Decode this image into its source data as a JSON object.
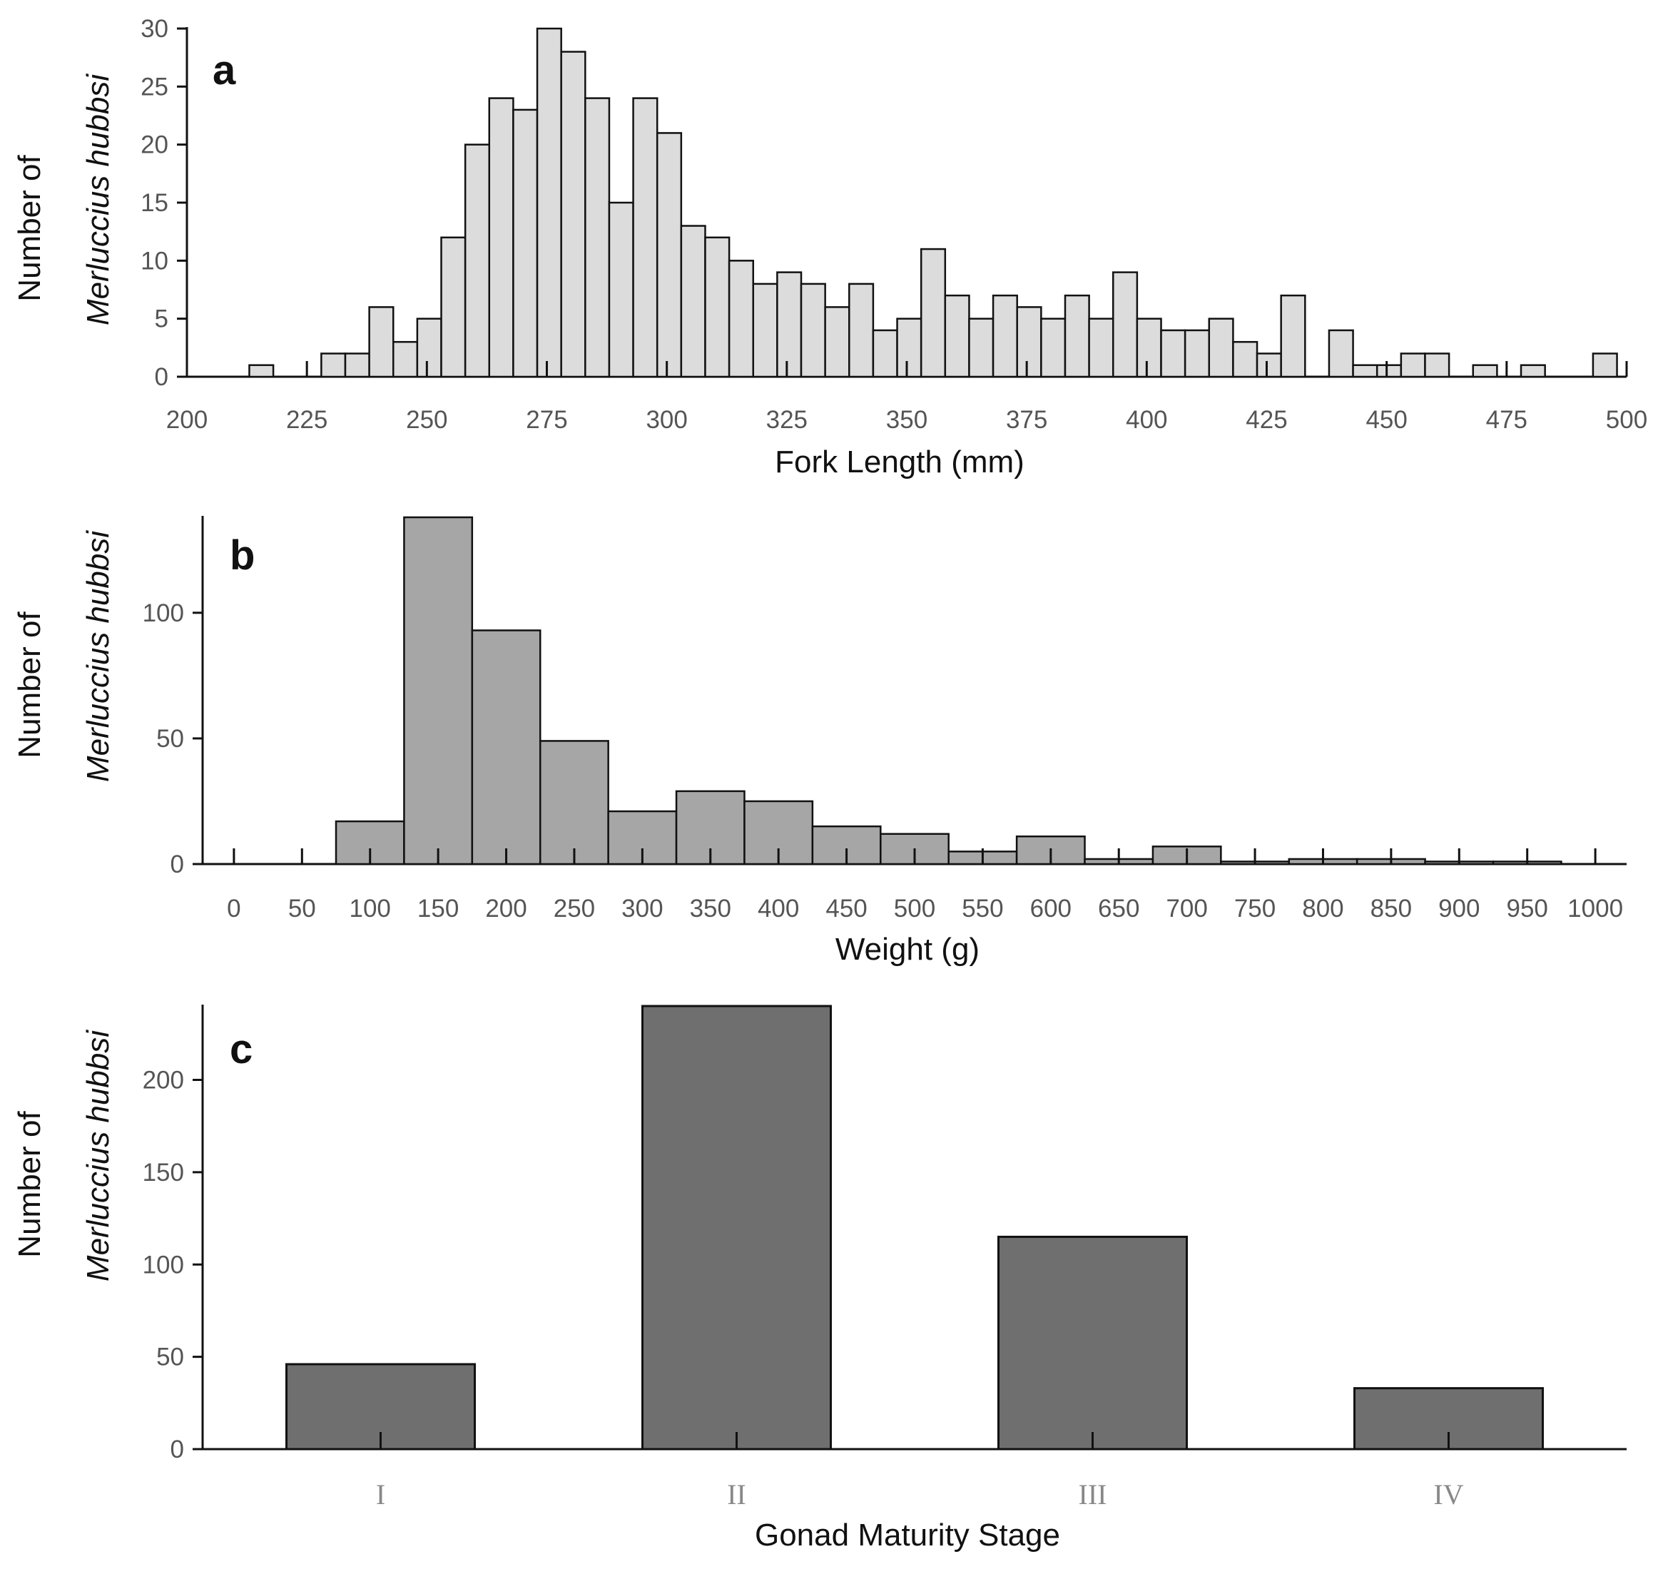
{
  "colors": {
    "panel_a_fill": "#dcdcdc",
    "panel_b_fill": "#a6a6a6",
    "panel_c_fill": "#6f6f6f",
    "stroke": "#111111",
    "tick_text": "#555555"
  },
  "chart_data": [
    {
      "type": "bar",
      "panel": "a",
      "title": "",
      "xlabel": "Fork Length (mm)",
      "ylabel_line1": "Number of",
      "ylabel_line2": "Merluccius hubbsi",
      "bin_width": 5,
      "xlim": [
        200,
        500
      ],
      "ylim": [
        0,
        30
      ],
      "xticks": [
        200,
        225,
        250,
        275,
        300,
        325,
        350,
        375,
        400,
        425,
        450,
        475,
        500
      ],
      "xtick_labels": [
        "200",
        "225",
        "250",
        "275",
        "300",
        "325",
        "350",
        "375",
        "400",
        "425",
        "450",
        "475",
        "500"
      ],
      "yticks": [
        0,
        5,
        10,
        15,
        20,
        25,
        30
      ],
      "ytick_labels": [
        "0",
        "5",
        "10",
        "15",
        "20",
        "25",
        "30"
      ],
      "bins": [
        {
          "start": 213,
          "value": 1
        },
        {
          "start": 228,
          "value": 2
        },
        {
          "start": 233,
          "value": 2
        },
        {
          "start": 238,
          "value": 6
        },
        {
          "start": 243,
          "value": 3
        },
        {
          "start": 248,
          "value": 5
        },
        {
          "start": 253,
          "value": 12
        },
        {
          "start": 258,
          "value": 20
        },
        {
          "start": 263,
          "value": 24
        },
        {
          "start": 268,
          "value": 23
        },
        {
          "start": 273,
          "value": 30
        },
        {
          "start": 278,
          "value": 28
        },
        {
          "start": 283,
          "value": 24
        },
        {
          "start": 288,
          "value": 15
        },
        {
          "start": 293,
          "value": 24
        },
        {
          "start": 298,
          "value": 21
        },
        {
          "start": 303,
          "value": 13
        },
        {
          "start": 308,
          "value": 12
        },
        {
          "start": 313,
          "value": 10
        },
        {
          "start": 318,
          "value": 8
        },
        {
          "start": 323,
          "value": 9
        },
        {
          "start": 328,
          "value": 8
        },
        {
          "start": 333,
          "value": 6
        },
        {
          "start": 338,
          "value": 8
        },
        {
          "start": 343,
          "value": 4
        },
        {
          "start": 348,
          "value": 5
        },
        {
          "start": 353,
          "value": 11
        },
        {
          "start": 358,
          "value": 7
        },
        {
          "start": 363,
          "value": 5
        },
        {
          "start": 368,
          "value": 7
        },
        {
          "start": 373,
          "value": 6
        },
        {
          "start": 378,
          "value": 5
        },
        {
          "start": 383,
          "value": 7
        },
        {
          "start": 388,
          "value": 5
        },
        {
          "start": 393,
          "value": 9
        },
        {
          "start": 398,
          "value": 5
        },
        {
          "start": 403,
          "value": 4
        },
        {
          "start": 408,
          "value": 4
        },
        {
          "start": 413,
          "value": 5
        },
        {
          "start": 418,
          "value": 3
        },
        {
          "start": 423,
          "value": 2
        },
        {
          "start": 428,
          "value": 7
        },
        {
          "start": 438,
          "value": 4
        },
        {
          "start": 443,
          "value": 1
        },
        {
          "start": 448,
          "value": 1
        },
        {
          "start": 453,
          "value": 2
        },
        {
          "start": 458,
          "value": 2
        },
        {
          "start": 468,
          "value": 1
        },
        {
          "start": 478,
          "value": 1
        },
        {
          "start": 493,
          "value": 2
        }
      ]
    },
    {
      "type": "bar",
      "panel": "b",
      "title": "",
      "xlabel": "Weight (g)",
      "ylabel_line1": "Number of",
      "ylabel_line2": "Merluccius hubbsi",
      "bin_width": 50,
      "xlim": [
        -23,
        1023
      ],
      "ylim": [
        0,
        138
      ],
      "xticks": [
        0,
        50,
        100,
        150,
        200,
        250,
        300,
        350,
        400,
        450,
        500,
        550,
        600,
        650,
        700,
        750,
        800,
        850,
        900,
        950,
        1000
      ],
      "xtick_labels": [
        "0",
        "50",
        "100",
        "150",
        "200",
        "250",
        "300",
        "350",
        "400",
        "450",
        "500",
        "550",
        "600",
        "650",
        "700",
        "750",
        "800",
        "850",
        "900",
        "950",
        "1000"
      ],
      "yticks": [
        0,
        50,
        100
      ],
      "ytick_labels": [
        "0",
        "50",
        "100"
      ],
      "bins": [
        {
          "start": 75,
          "value": 17
        },
        {
          "start": 125,
          "value": 138
        },
        {
          "start": 175,
          "value": 93
        },
        {
          "start": 225,
          "value": 49
        },
        {
          "start": 275,
          "value": 21
        },
        {
          "start": 325,
          "value": 29
        },
        {
          "start": 375,
          "value": 25
        },
        {
          "start": 425,
          "value": 15
        },
        {
          "start": 475,
          "value": 12
        },
        {
          "start": 525,
          "value": 5
        },
        {
          "start": 575,
          "value": 11
        },
        {
          "start": 625,
          "value": 2
        },
        {
          "start": 675,
          "value": 7
        },
        {
          "start": 725,
          "value": 1
        },
        {
          "start": 775,
          "value": 2
        },
        {
          "start": 825,
          "value": 2
        },
        {
          "start": 875,
          "value": 1
        },
        {
          "start": 925,
          "value": 1
        }
      ]
    },
    {
      "type": "bar",
      "panel": "c",
      "title": "",
      "xlabel": "Gonad Maturity Stage",
      "ylabel_line1": "Number of",
      "ylabel_line2": "Merluccius hubbsi",
      "categories": [
        "I",
        "II",
        "III",
        "IV"
      ],
      "values": [
        46,
        240,
        115,
        33
      ],
      "ylim": [
        0,
        240
      ],
      "yticks": [
        0,
        50,
        100,
        150,
        200
      ],
      "ytick_labels": [
        "0",
        "50",
        "100",
        "150",
        "200"
      ]
    }
  ]
}
